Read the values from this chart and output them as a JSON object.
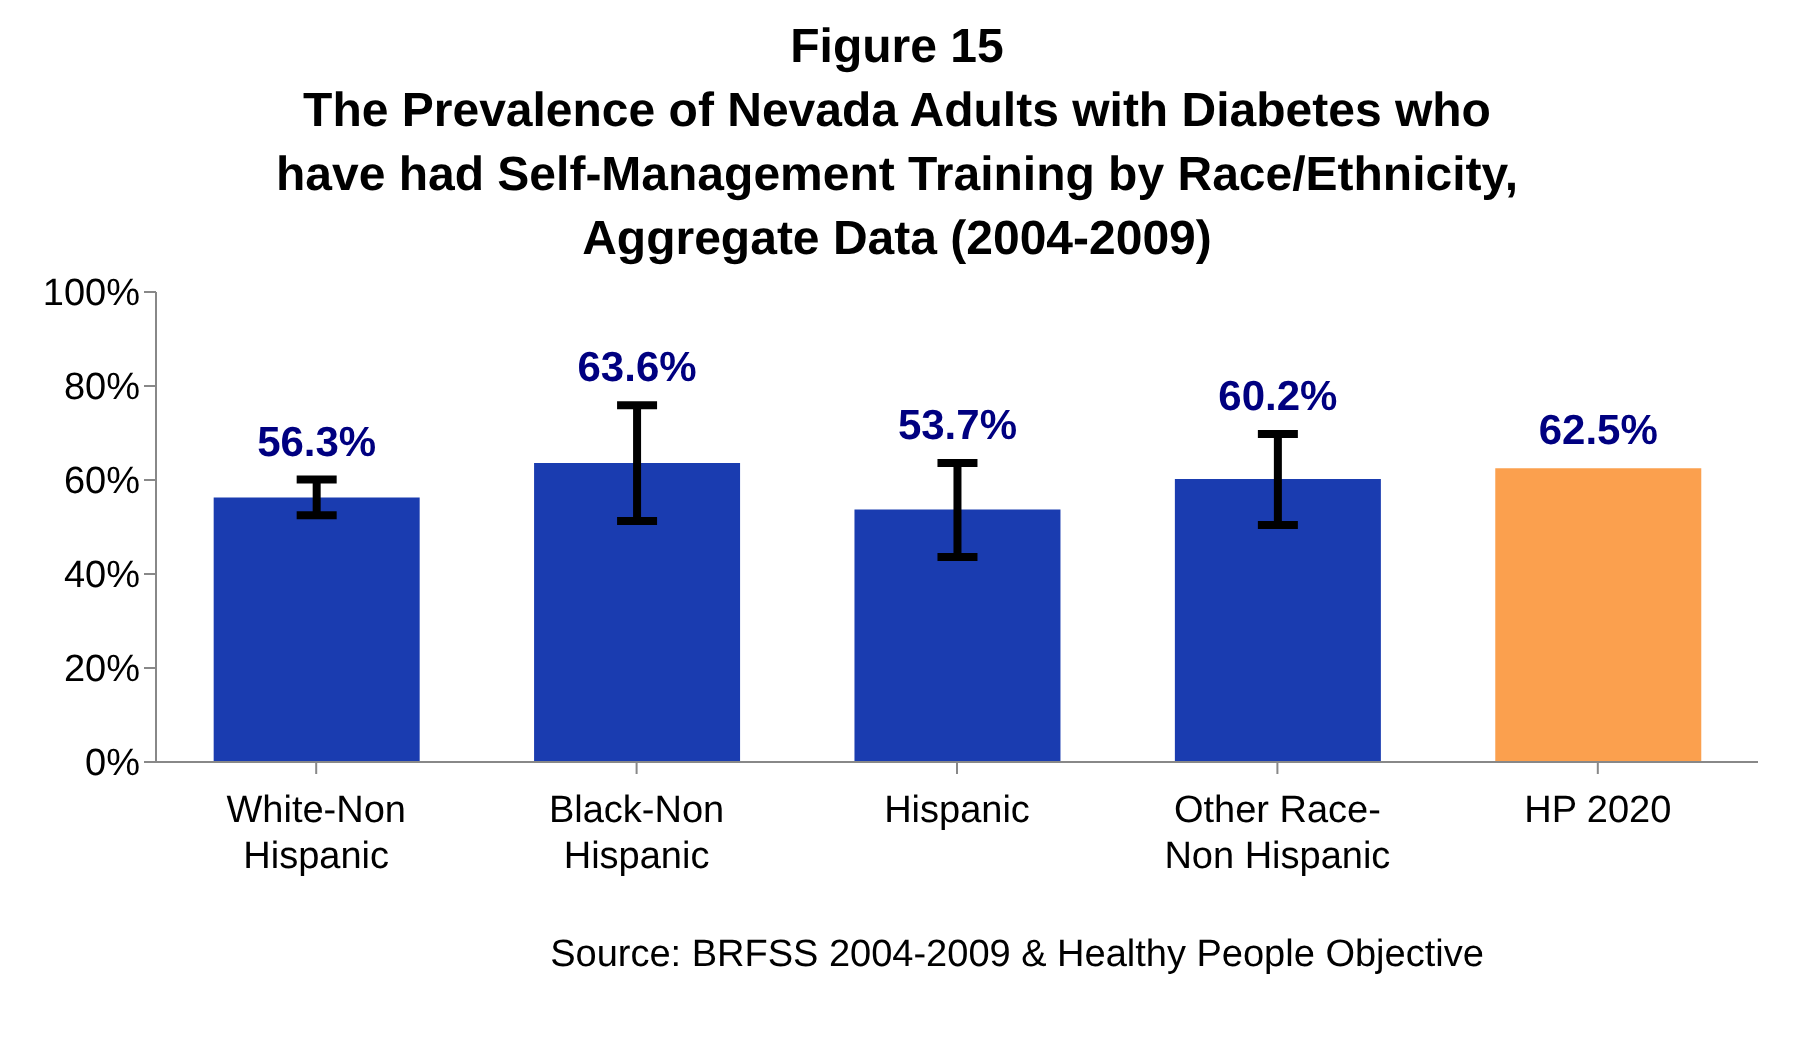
{
  "chart_data": {
    "type": "bar",
    "title": "Figure 15\nThe Prevalence of Nevada Adults with Diabetes who\nhave had Self-Management Training by Race/Ethnicity,\nAggregate Data (2004-2009)",
    "categories": [
      "White-Non Hispanic",
      "Black-Non Hispanic",
      "Hispanic",
      "Other Race-Non Hispanic",
      "HP 2020"
    ],
    "values": [
      56.3,
      63.6,
      53.7,
      60.2,
      62.5
    ],
    "colors": [
      "#1a3cb0",
      "#1a3cb0",
      "#1a3cb0",
      "#1a3cb0",
      "#fba04e"
    ],
    "errors": [
      [
        52.5,
        60.1
      ],
      [
        51.3,
        75.9
      ],
      [
        43.6,
        63.6
      ],
      [
        50.4,
        69.8
      ],
      null
    ],
    "value_labels": [
      "56.3%",
      "63.6%",
      "53.7%",
      "60.2%",
      "62.5%"
    ],
    "ylim": [
      0,
      100
    ],
    "yticks": [
      {
        "value": 0,
        "label": "0%"
      },
      {
        "value": 20,
        "label": "20%"
      },
      {
        "value": 40,
        "label": "40%"
      },
      {
        "value": 60,
        "label": "60%"
      },
      {
        "value": 80,
        "label": "80%"
      },
      {
        "value": 100,
        "label": "100%"
      }
    ],
    "grid": false,
    "annotations": [
      "Source: BRFSS 2004-2009 & Healthy People Objective"
    ]
  }
}
